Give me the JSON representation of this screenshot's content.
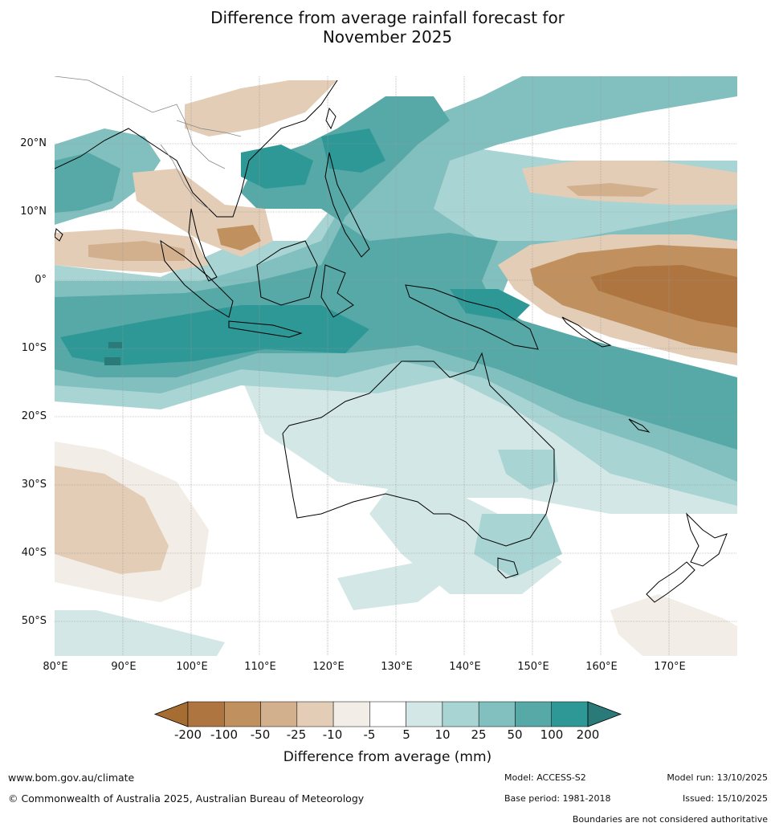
{
  "title": {
    "line1": "Difference from average rainfall forecast for",
    "line2": "November 2025"
  },
  "map": {
    "lat_labels": [
      "20°N",
      "10°N",
      "0°",
      "10°S",
      "20°S",
      "30°S",
      "40°S",
      "50°S"
    ],
    "lon_labels": [
      "80°E",
      "90°E",
      "100°E",
      "110°E",
      "120°E",
      "130°E",
      "140°E",
      "150°E",
      "160°E",
      "170°E"
    ],
    "extent": {
      "lon_min": 80,
      "lon_max": 180,
      "lat_min": -55,
      "lat_max": 30
    }
  },
  "colorbar": {
    "labels": [
      "-200",
      "-100",
      "-50",
      "-25",
      "-10",
      "-5",
      "5",
      "10",
      "25",
      "50",
      "100",
      "200"
    ],
    "colors": [
      "#a66d33",
      "#ae7540",
      "#c0915f",
      "#d2b08e",
      "#e3cdb6",
      "#f2ede6",
      "#ffffff",
      "#d3e8e6",
      "#a8d4d3",
      "#82c0bf",
      "#57a9a8",
      "#2e9896",
      "#2a7a79"
    ],
    "title": "Difference from average (mm)"
  },
  "footer": {
    "website": "www.bom.gov.au/climate",
    "copyright": "© Commonwealth of Australia 2025, Australian Bureau of Meteorology",
    "model": "Model: ACCESS-S2",
    "base_period": "Base period: 1981-2018",
    "model_run": "Model run: 13/10/2025",
    "issued": "Issued: 15/10/2025",
    "disclaimer": "Boundaries are not considered authoritative"
  }
}
